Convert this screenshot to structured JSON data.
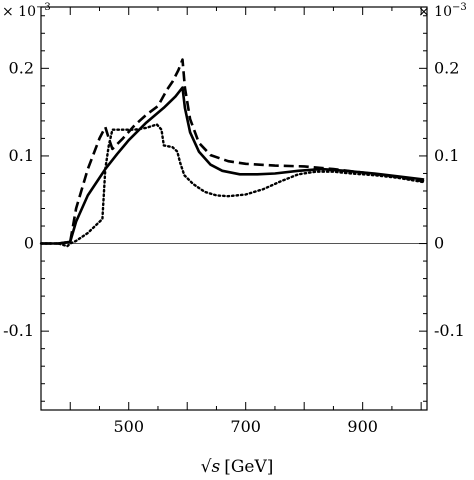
{
  "chart_data": {
    "type": "line",
    "xlabel_prefix": "√",
    "xlabel_var": "s",
    "xlabel_unit": "[GeV]",
    "y_scale_label": "× 10",
    "y_scale_exponent": "−3",
    "xlim": [
      350,
      1010
    ],
    "ylim": [
      -0.19,
      0.27
    ],
    "x_ticks": [
      500,
      700,
      900
    ],
    "x_tick_labels": [
      "500",
      "700",
      "900"
    ],
    "y_ticks": [
      -0.1,
      0,
      0.1,
      0.2
    ],
    "y_tick_labels": [
      "-0.1",
      "0",
      "0.1",
      "0.2"
    ],
    "zero_line": true,
    "grid": false,
    "colors": {
      "axis": "#000000",
      "line": "#000000",
      "zero_line": "#555555"
    },
    "series": [
      {
        "style": "solid",
        "x": [
          350,
          380,
          400,
          410,
          430,
          460,
          480,
          500,
          530,
          560,
          580,
          592,
          596,
          605,
          620,
          640,
          660,
          690,
          720,
          750,
          790,
          830,
          870,
          920,
          970,
          1005
        ],
        "y": [
          0.0,
          0.0,
          0.002,
          0.025,
          0.055,
          0.085,
          0.102,
          0.118,
          0.138,
          0.155,
          0.168,
          0.178,
          0.155,
          0.127,
          0.105,
          0.09,
          0.083,
          0.079,
          0.079,
          0.08,
          0.083,
          0.085,
          0.083,
          0.08,
          0.076,
          0.073
        ]
      },
      {
        "style": "dashed",
        "x": [
          350,
          380,
          400,
          410,
          430,
          450,
          460,
          466,
          472,
          490,
          510,
          530,
          550,
          565,
          575,
          585,
          592,
          596,
          605,
          620,
          640,
          670,
          700,
          750,
          800,
          850,
          900,
          950,
          1005
        ],
        "y": [
          0.0,
          0.0,
          0.002,
          0.04,
          0.085,
          0.12,
          0.133,
          0.12,
          0.108,
          0.12,
          0.135,
          0.147,
          0.157,
          0.175,
          0.185,
          0.198,
          0.21,
          0.178,
          0.142,
          0.115,
          0.101,
          0.094,
          0.091,
          0.089,
          0.088,
          0.085,
          0.081,
          0.077,
          0.071
        ]
      },
      {
        "style": "dotted",
        "x": [
          350,
          380,
          395,
          400,
          410,
          430,
          455,
          460,
          466,
          472,
          490,
          510,
          530,
          548,
          556,
          560,
          575,
          583,
          588,
          595,
          610,
          630,
          650,
          670,
          700,
          730,
          760,
          790,
          820,
          850,
          880,
          920,
          960,
          1005
        ],
        "y": [
          0.0,
          0.0,
          -0.003,
          0.0,
          0.003,
          0.012,
          0.028,
          0.085,
          0.112,
          0.13,
          0.13,
          0.13,
          0.132,
          0.136,
          0.13,
          0.112,
          0.11,
          0.105,
          0.092,
          0.078,
          0.068,
          0.059,
          0.055,
          0.054,
          0.056,
          0.062,
          0.071,
          0.079,
          0.082,
          0.082,
          0.08,
          0.078,
          0.075,
          0.07
        ]
      }
    ]
  }
}
